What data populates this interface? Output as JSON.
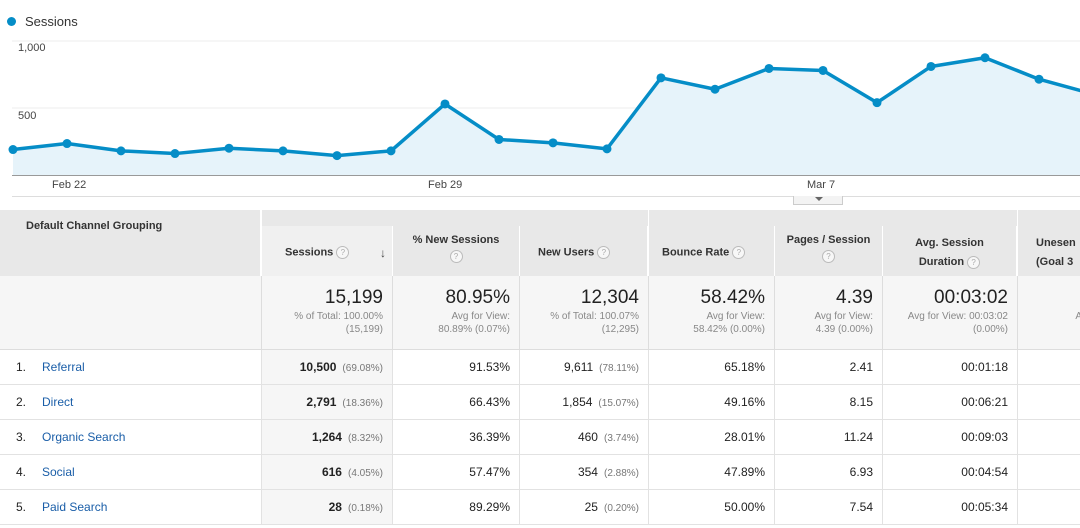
{
  "chart": {
    "legend": "Sessions",
    "color": "#058dc7",
    "y_ticks": [
      "1,000",
      "500"
    ],
    "x_ticks": [
      "Feb 22",
      "Feb 29",
      "Mar 7"
    ]
  },
  "chart_data": {
    "type": "area",
    "series": [
      {
        "name": "Sessions",
        "values": [
          190,
          235,
          180,
          160,
          200,
          180,
          145,
          180,
          530,
          265,
          240,
          195,
          725,
          640,
          795,
          780,
          540,
          810,
          875,
          715,
          605
        ]
      }
    ],
    "ylim": [
      0,
      1000
    ]
  },
  "table": {
    "dimension_header": "Default Channel Grouping",
    "columns": {
      "sessions": "Sessions",
      "new_sessions": "% New Sessions",
      "new_users": "New Users",
      "bounce_rate": "Bounce Rate",
      "pages_session": "Pages / Session",
      "avg_duration": "Avg. Session Duration",
      "goal": "Unesen (Goal 3"
    },
    "totals": {
      "sessions": {
        "value": "15,199",
        "sub1": "% of Total: 100.00%",
        "sub2": "(15,199)"
      },
      "new_sessions": {
        "value": "80.95%",
        "sub1": "Avg for View:",
        "sub2": "80.89% (0.07%)"
      },
      "new_users": {
        "value": "12,304",
        "sub1": "% of Total: 100.07%",
        "sub2": "(12,295)"
      },
      "bounce_rate": {
        "value": "58.42%",
        "sub1": "Avg for View:",
        "sub2": "58.42% (0.00%)"
      },
      "pages_session": {
        "value": "4.39",
        "sub1": "Avg for View:",
        "sub2": "4.39 (0.00%)"
      },
      "avg_duration": {
        "value": "00:03:02",
        "sub1": "Avg for View: 00:03:02",
        "sub2": "(0.00%)"
      },
      "goal_sub": "A"
    },
    "rows": [
      {
        "idx": "1.",
        "channel": "Referral",
        "sessions": "10,500",
        "sessions_pct": "(69.08%)",
        "new_sessions": "91.53%",
        "new_users": "9,611",
        "new_users_pct": "(78.11%)",
        "bounce": "65.18%",
        "pages": "2.41",
        "duration": "00:01:18"
      },
      {
        "idx": "2.",
        "channel": "Direct",
        "sessions": "2,791",
        "sessions_pct": "(18.36%)",
        "new_sessions": "66.43%",
        "new_users": "1,854",
        "new_users_pct": "(15.07%)",
        "bounce": "49.16%",
        "pages": "8.15",
        "duration": "00:06:21"
      },
      {
        "idx": "3.",
        "channel": "Organic Search",
        "sessions": "1,264",
        "sessions_pct": "(8.32%)",
        "new_sessions": "36.39%",
        "new_users": "460",
        "new_users_pct": "(3.74%)",
        "bounce": "28.01%",
        "pages": "11.24",
        "duration": "00:09:03"
      },
      {
        "idx": "4.",
        "channel": "Social",
        "sessions": "616",
        "sessions_pct": "(4.05%)",
        "new_sessions": "57.47%",
        "new_users": "354",
        "new_users_pct": "(2.88%)",
        "bounce": "47.89%",
        "pages": "6.93",
        "duration": "00:04:54"
      },
      {
        "idx": "5.",
        "channel": "Paid Search",
        "sessions": "28",
        "sessions_pct": "(0.18%)",
        "new_sessions": "89.29%",
        "new_users": "25",
        "new_users_pct": "(0.20%)",
        "bounce": "50.00%",
        "pages": "7.54",
        "duration": "00:05:34"
      }
    ]
  }
}
